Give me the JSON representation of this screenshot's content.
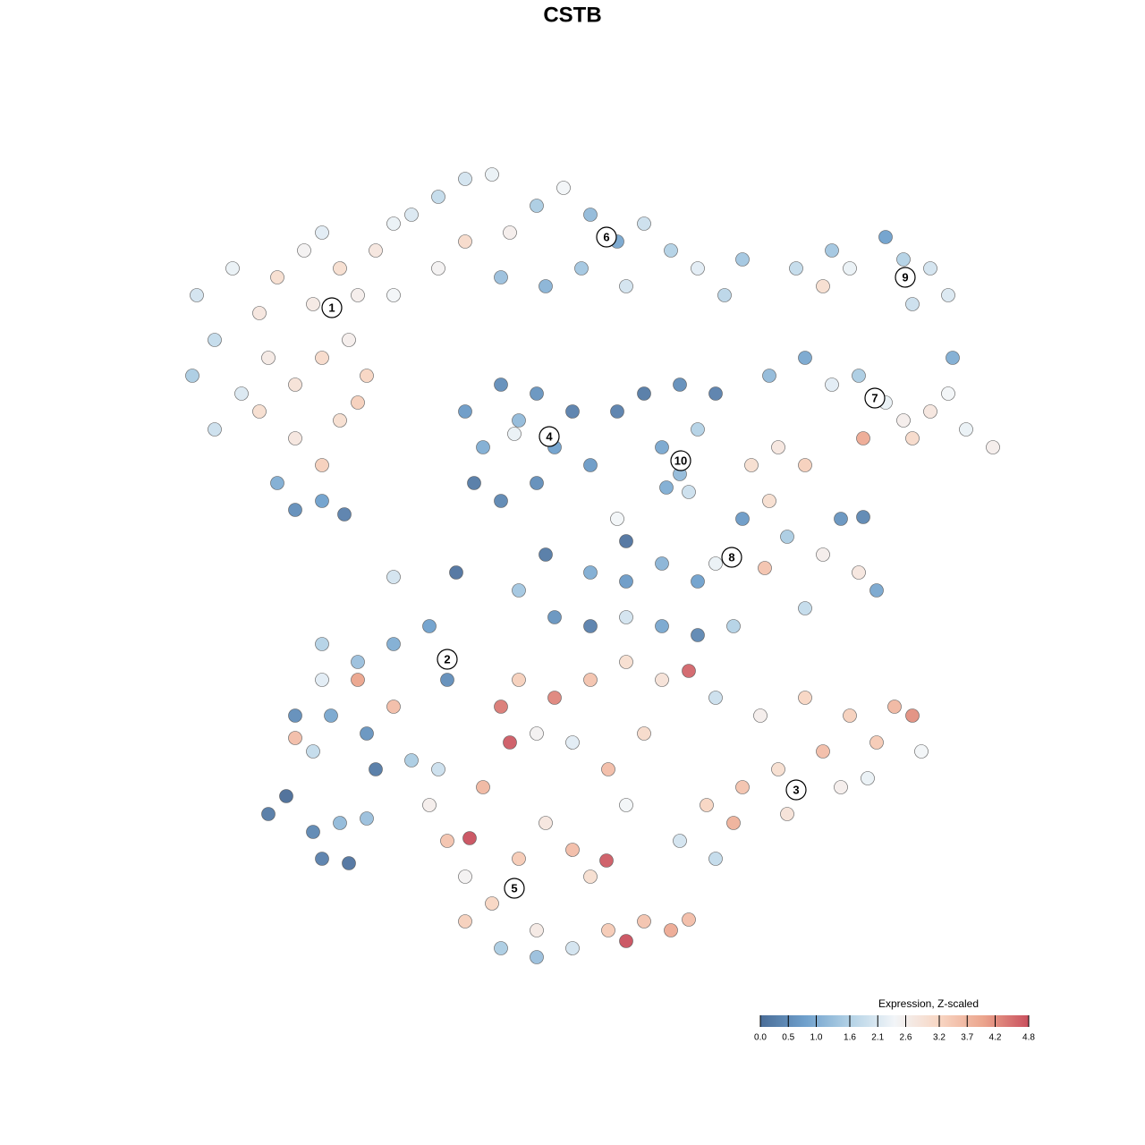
{
  "chart_data": {
    "type": "scatter",
    "title": "CSTB",
    "xlim": [
      0,
      1280
    ],
    "ylim": [
      1280,
      0
    ],
    "x": [
      220,
      240,
      215,
      260,
      290,
      310,
      340,
      360,
      380,
      400,
      420,
      440,
      300,
      330,
      360,
      390,
      410,
      290,
      330,
      360,
      380,
      400,
      310,
      330,
      360,
      385,
      240,
      270,
      350,
      440,
      460,
      490,
      520,
      550,
      570,
      600,
      630,
      660,
      690,
      720,
      750,
      780,
      810,
      830,
      560,
      610,
      650,
      700,
      520,
      490,
      890,
      920,
      950,
      990,
      1010,
      1040,
      1060,
      1020,
      930,
      1065,
      860,
      900,
      930,
      960,
      990,
      1010,
      1040,
      1080,
      1110,
      1060,
      965,
      1020,
      520,
      540,
      560,
      580,
      600,
      620,
      640,
      600,
      560,
      530,
      660,
      575,
      690,
      720,
      760,
      800,
      740,
      760,
      780,
      770,
      745,
      840,
      870,
      900,
      860,
      830,
      880,
      920,
      960,
      980,
      900,
      940,
      965,
      855,
      800,
      610,
      660,
      700,
      740,
      780,
      620,
      660,
      700,
      740,
      780,
      820,
      580,
      510,
      440,
      690,
      700,
      360,
      400,
      440,
      480,
      500,
      360,
      400,
      330,
      370,
      410,
      350,
      440,
      460,
      420,
      330,
      300,
      320,
      350,
      380,
      360,
      410,
      390,
      580,
      620,
      660,
      700,
      740,
      770,
      800,
      850,
      900,
      950,
      1000,
      1020,
      980,
      920,
      870,
      830,
      790,
      760,
      820,
      880,
      940,
      970,
      720,
      680,
      640,
      600,
      560,
      570,
      700,
      800,
      1030,
      480,
      500,
      525,
      520,
      550,
      580,
      610,
      640,
      660,
      678,
      600,
      640,
      680,
      700,
      720,
      750,
      770,
      560,
      520,
      490,
      540,
      600
    ],
    "y": [
      330,
      380,
      420,
      300,
      350,
      310,
      280,
      260,
      300,
      330,
      280,
      250,
      400,
      430,
      400,
      380,
      420,
      460,
      490,
      520,
      470,
      450,
      540,
      570,
      560,
      575,
      480,
      440,
      340,
      330,
      240,
      220,
      200,
      195,
      260,
      230,
      210,
      240,
      270,
      250,
      280,
      300,
      330,
      290,
      310,
      320,
      300,
      320,
      270,
      300,
      300,
      320,
      300,
      265,
      290,
      300,
      330,
      340,
      280,
      400,
      420,
      400,
      430,
      420,
      450,
      470,
      460,
      480,
      500,
      440,
      490,
      490,
      460,
      500,
      430,
      470,
      440,
      500,
      460,
      540,
      560,
      540,
      520,
      485,
      460,
      440,
      430,
      440,
      500,
      530,
      480,
      550,
      545,
      520,
      500,
      520,
      560,
      580,
      600,
      620,
      640,
      660,
      680,
      580,
      578,
      635,
      630,
      620,
      640,
      650,
      630,
      650,
      690,
      700,
      690,
      700,
      710,
      700,
      660,
      640,
      645,
      580,
      605,
      720,
      740,
      720,
      700,
      760,
      760,
      760,
      800,
      800,
      820,
      840,
      790,
      850,
      860,
      825,
      910,
      890,
      930,
      920,
      960,
      915,
      965,
      760,
      780,
      760,
      740,
      760,
      750,
      780,
      800,
      780,
      800,
      790,
      800,
      830,
      840,
      860,
      880,
      900,
      940,
      920,
      910,
      880,
      870,
      820,
      860,
      830,
      820,
      790,
      830,
      900,
      960,
      840,
      900,
      940,
      937,
      980,
      1010,
      960,
      920,
      950,
      980,
      962,
      1040,
      1060,
      1040,
      1052,
      1030,
      1040,
      1028,
      1060,
      1030,
      860,
      880,
      1070
    ],
    "values": [
      2.0,
      1.8,
      1.5,
      2.3,
      2.8,
      3.0,
      2.5,
      2.2,
      3.0,
      2.6,
      2.8,
      2.3,
      2.7,
      2.9,
      3.1,
      2.6,
      3.2,
      3.0,
      2.8,
      3.3,
      3.0,
      3.3,
      1.0,
      0.5,
      0.8,
      0.3,
      1.9,
      2.1,
      2.7,
      2.4,
      2.1,
      1.8,
      2.0,
      2.3,
      2.6,
      1.5,
      2.4,
      1.2,
      0.9,
      1.9,
      1.6,
      2.2,
      1.7,
      1.4,
      1.3,
      1.1,
      1.4,
      2.0,
      3.1,
      2.5,
      1.8,
      3.0,
      2.3,
      0.8,
      1.6,
      2.0,
      2.1,
      1.9,
      1.4,
      1.0,
      1.2,
      0.9,
      2.2,
      1.5,
      2.3,
      2.6,
      2.8,
      2.3,
      2.6,
      2.4,
      3.9,
      3.1,
      0.7,
      1.0,
      0.5,
      1.2,
      0.6,
      0.8,
      0.3,
      0.5,
      0.4,
      0.2,
      0.7,
      2.3,
      0.3,
      0.2,
      0.5,
      0.3,
      0.9,
      1.2,
      1.6,
      1.9,
      1.0,
      3.0,
      2.8,
      3.3,
      3.0,
      0.7,
      1.5,
      2.6,
      2.8,
      0.9,
      1.8,
      0.6,
      0.4,
      3.5,
      2.3,
      0.2,
      1.0,
      0.7,
      1.1,
      0.8,
      0.6,
      0.3,
      2.0,
      0.9,
      0.4,
      1.6,
      1.4,
      0.1,
      2.0,
      2.4,
      0.1,
      1.6,
      1.3,
      1.0,
      0.8,
      0.5,
      2.2,
      4.0,
      0.5,
      0.9,
      0.6,
      1.8,
      3.6,
      1.5,
      0.2,
      3.6,
      0.2,
      0.0,
      0.4,
      1.2,
      0.3,
      1.3,
      0.1,
      3.3,
      4.3,
      3.5,
      3.0,
      2.9,
      4.6,
      1.9,
      2.6,
      3.2,
      3.3,
      3.7,
      4.2,
      3.4,
      3.6,
      3.0,
      3.5,
      3.2,
      2.0,
      3.8,
      2.9,
      2.6,
      2.3,
      3.1,
      3.6,
      2.2,
      2.5,
      4.4,
      4.7,
      2.4,
      1.8,
      2.4,
      2.6,
      3.5,
      4.8,
      2.5,
      3.2,
      3.4,
      2.8,
      3.6,
      3.0,
      4.7,
      2.7,
      2.0,
      3.4,
      4.8,
      3.5,
      3.9,
      3.6,
      1.5,
      3.3,
      1.9,
      3.7,
      1.3
    ],
    "cluster_labels": [
      "1",
      "2",
      "3",
      "4",
      "5",
      "6",
      "7",
      "8",
      "9",
      "10"
    ],
    "cluster_x": [
      371,
      500,
      890,
      614,
      575,
      678,
      978,
      818,
      1012,
      761
    ],
    "cluster_y": [
      344,
      737,
      883,
      488,
      993,
      265,
      445,
      623,
      310,
      515
    ],
    "colorbar": {
      "title": "Expression, Z-scaled",
      "lim": [
        0,
        4.8
      ],
      "ticks": [
        {
          "value": 0,
          "label": "0.0"
        },
        0.5,
        {
          "value": 1,
          "label": "1.0"
        },
        1.6,
        2.1,
        2.6,
        3.2,
        3.7,
        4.2,
        4.8
      ],
      "colors": [
        "#4a6d98",
        "#6fa0cc",
        "#b3d2e6",
        "#f2f5f8",
        "#f8d6c3",
        "#eba48c",
        "#c9505e"
      ]
    }
  }
}
